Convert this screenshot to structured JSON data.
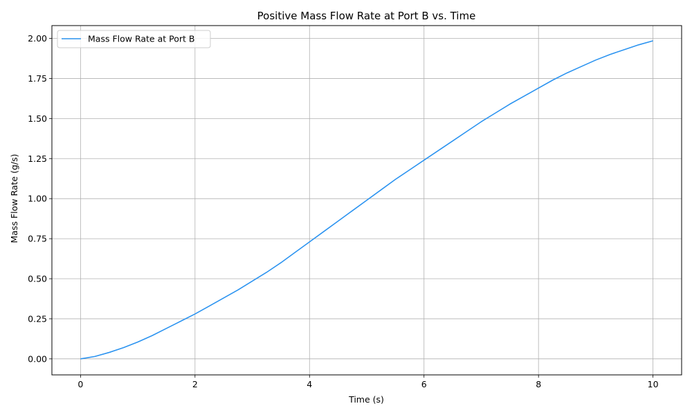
{
  "chart_data": {
    "type": "line",
    "title": "Positive Mass Flow Rate at Port B vs. Time",
    "xlabel": "Time (s)",
    "ylabel": "Mass Flow Rate (g/s)",
    "xlim": [
      -0.5,
      10.5
    ],
    "ylim": [
      -0.1,
      2.08
    ],
    "xticks": [
      0,
      2,
      4,
      6,
      8,
      10
    ],
    "xtick_labels": [
      "0",
      "2",
      "4",
      "6",
      "8",
      "10"
    ],
    "yticks": [
      0,
      0.25,
      0.5,
      0.75,
      1.0,
      1.25,
      1.5,
      1.75,
      2.0
    ],
    "ytick_labels": [
      "0.00",
      "0.25",
      "0.50",
      "0.75",
      "1.00",
      "1.25",
      "1.50",
      "1.75",
      "2.00"
    ],
    "grid": true,
    "legend_position": "top-left",
    "series": [
      {
        "name": "Mass Flow Rate at Port B",
        "color": "#2b93f0",
        "x": [
          0,
          0.25,
          0.5,
          0.75,
          1.0,
          1.25,
          1.5,
          1.75,
          2.0,
          2.25,
          2.5,
          2.75,
          3.0,
          3.25,
          3.5,
          3.75,
          4.0,
          4.25,
          4.5,
          4.75,
          5.0,
          5.25,
          5.5,
          5.75,
          6.0,
          6.25,
          6.5,
          6.75,
          7.0,
          7.25,
          7.5,
          7.75,
          8.0,
          8.25,
          8.5,
          8.75,
          9.0,
          9.25,
          9.5,
          9.75,
          10.0
        ],
        "y": [
          0.0,
          0.015,
          0.04,
          0.07,
          0.105,
          0.145,
          0.19,
          0.235,
          0.28,
          0.33,
          0.38,
          0.43,
          0.485,
          0.54,
          0.6,
          0.665,
          0.73,
          0.795,
          0.86,
          0.925,
          0.99,
          1.055,
          1.12,
          1.18,
          1.24,
          1.3,
          1.36,
          1.42,
          1.48,
          1.535,
          1.59,
          1.64,
          1.69,
          1.74,
          1.785,
          1.825,
          1.865,
          1.9,
          1.93,
          1.96,
          1.985
        ]
      }
    ]
  }
}
